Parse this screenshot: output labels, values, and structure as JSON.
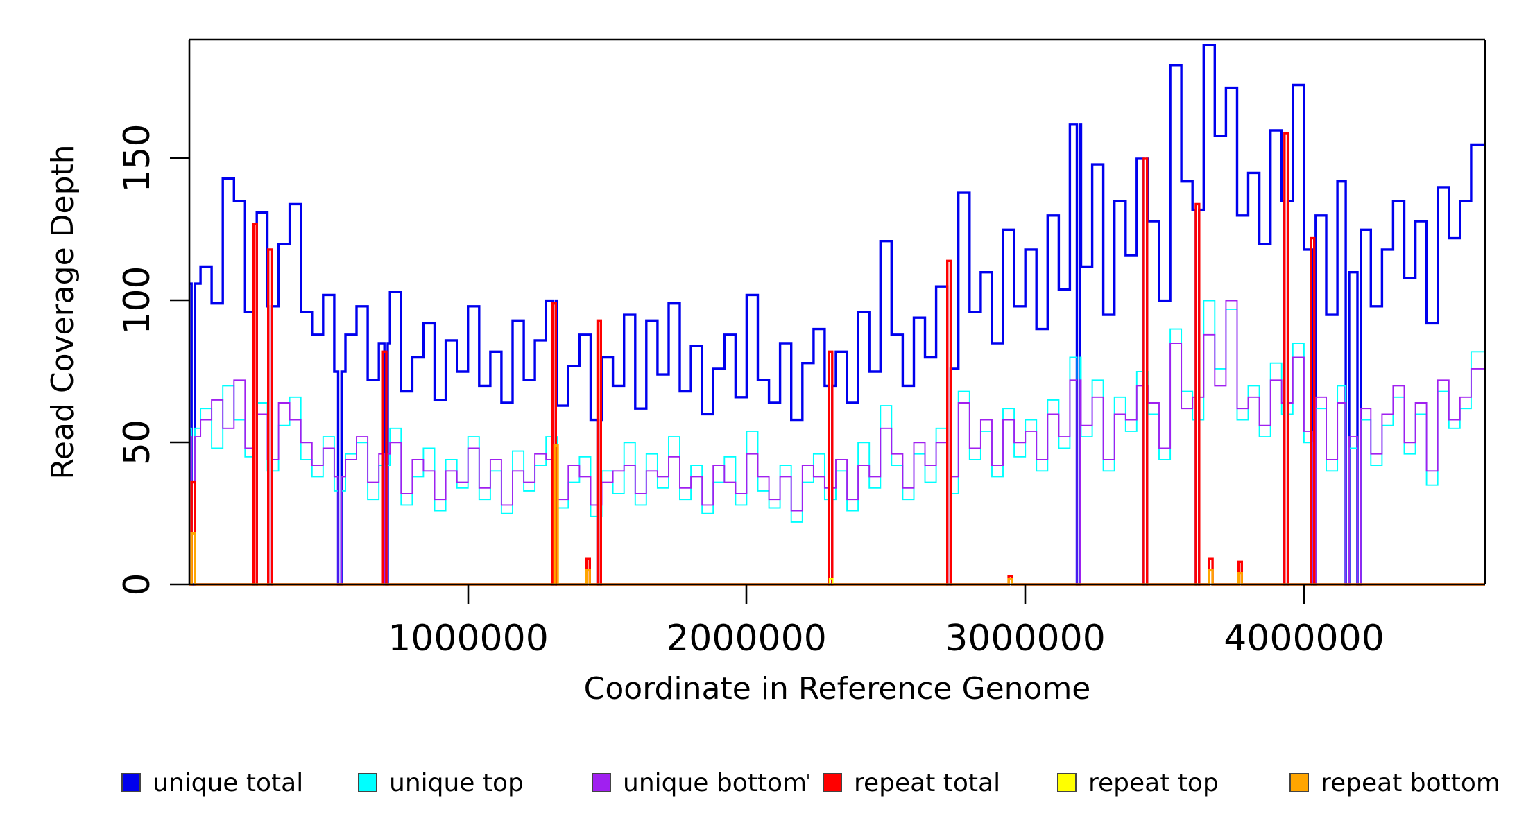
{
  "chart_data": {
    "type": "line",
    "subtype": "step-coverage",
    "title": "",
    "xlabel": "Coordinate in Reference Genome",
    "ylabel": "Read Coverage Depth",
    "xlim": [
      0,
      4650000
    ],
    "ylim": [
      0,
      192
    ],
    "xticks": [
      1000000,
      2000000,
      3000000,
      4000000
    ],
    "xtick_labels": [
      "1000000",
      "2000000",
      "3000000",
      "4000000"
    ],
    "yticks": [
      0,
      50,
      100,
      150
    ],
    "ytick_labels": [
      "0",
      "50",
      "100",
      "150"
    ],
    "grid": false,
    "legend_position": "bottom",
    "bin_size": 40000,
    "notch_width": 12000,
    "zero_dip_positions": [
      8000,
      230000,
      283000,
      534000,
      700000,
      1303000,
      1465000,
      2295000,
      2720000,
      3185000,
      3425000,
      3612000,
      3930000,
      4030000,
      4150000,
      4192000
    ],
    "series": [
      {
        "name": "unique total",
        "color": "#0000ee",
        "width": 3.4,
        "kind": "binned",
        "values": [
          106,
          112,
          99,
          143,
          135,
          96,
          131,
          98,
          120,
          134,
          96,
          88,
          102,
          75,
          88,
          98,
          72,
          85,
          103,
          68,
          80,
          92,
          65,
          86,
          75,
          98,
          70,
          82,
          64,
          93,
          72,
          86,
          100,
          63,
          77,
          88,
          58,
          80,
          70,
          95,
          62,
          93,
          74,
          99,
          68,
          84,
          60,
          76,
          88,
          66,
          102,
          72,
          64,
          85,
          58,
          78,
          90,
          70,
          82,
          64,
          96,
          75,
          121,
          88,
          70,
          94,
          80,
          105,
          76,
          138,
          96,
          110,
          85,
          125,
          98,
          118,
          90,
          130,
          104,
          162,
          112,
          148,
          95,
          135,
          116,
          150,
          128,
          100,
          183,
          142,
          132,
          190,
          158,
          175,
          130,
          145,
          120,
          160,
          135,
          176,
          118,
          130,
          95,
          142,
          110,
          125,
          98,
          118,
          135,
          108,
          128,
          92,
          140,
          122,
          135,
          155
        ]
      },
      {
        "name": "unique top",
        "color": "#00ffff",
        "width": 1.9,
        "kind": "binned",
        "values": [
          55,
          62,
          48,
          70,
          58,
          45,
          64,
          40,
          56,
          66,
          44,
          38,
          52,
          33,
          46,
          50,
          30,
          42,
          55,
          28,
          38,
          48,
          26,
          44,
          34,
          52,
          30,
          40,
          25,
          47,
          33,
          42,
          52,
          27,
          36,
          45,
          24,
          40,
          32,
          50,
          28,
          46,
          34,
          52,
          30,
          42,
          25,
          36,
          45,
          28,
          54,
          33,
          27,
          42,
          22,
          36,
          46,
          30,
          40,
          26,
          50,
          34,
          63,
          42,
          30,
          46,
          36,
          55,
          32,
          68,
          44,
          54,
          38,
          62,
          45,
          58,
          40,
          65,
          48,
          80,
          52,
          72,
          40,
          66,
          54,
          75,
          60,
          44,
          90,
          68,
          58,
          100,
          76,
          97,
          58,
          70,
          52,
          78,
          60,
          85,
          50,
          62,
          40,
          70,
          48,
          58,
          42,
          56,
          66,
          46,
          60,
          35,
          68,
          55,
          62,
          82
        ]
      },
      {
        "name": "unique bottom",
        "color": "#a020f0",
        "width": 1.9,
        "kind": "binned",
        "values": [
          52,
          58,
          65,
          55,
          72,
          48,
          60,
          44,
          64,
          58,
          50,
          42,
          48,
          38,
          44,
          52,
          36,
          46,
          50,
          32,
          44,
          40,
          30,
          40,
          36,
          48,
          34,
          44,
          28,
          40,
          36,
          46,
          44,
          30,
          42,
          38,
          28,
          36,
          40,
          42,
          32,
          40,
          38,
          45,
          34,
          38,
          28,
          42,
          36,
          32,
          46,
          38,
          30,
          38,
          26,
          42,
          38,
          34,
          44,
          30,
          42,
          38,
          55,
          46,
          34,
          50,
          42,
          50,
          38,
          64,
          48,
          58,
          42,
          58,
          50,
          54,
          44,
          60,
          52,
          72,
          56,
          66,
          44,
          60,
          58,
          70,
          64,
          48,
          85,
          62,
          66,
          88,
          70,
          100,
          62,
          66,
          56,
          72,
          64,
          80,
          54,
          66,
          44,
          64,
          52,
          62,
          46,
          60,
          70,
          50,
          64,
          40,
          72,
          58,
          66,
          76
        ]
      },
      {
        "name": "repeat total",
        "color": "#ff0000",
        "width": 3.4,
        "kind": "spikes",
        "spikes": [
          [
            8000,
            36
          ],
          [
            230000,
            127
          ],
          [
            283000,
            118
          ],
          [
            695000,
            82
          ],
          [
            1303000,
            99
          ],
          [
            1425000,
            9
          ],
          [
            1465000,
            93
          ],
          [
            2295000,
            82
          ],
          [
            2720000,
            114
          ],
          [
            2940000,
            3
          ],
          [
            3425000,
            150
          ],
          [
            3612000,
            134
          ],
          [
            3660000,
            9
          ],
          [
            3765000,
            8
          ],
          [
            3930000,
            159
          ],
          [
            4025000,
            122
          ]
        ]
      },
      {
        "name": "repeat top",
        "color": "#ffff00",
        "width": 1.9,
        "kind": "spikes",
        "spikes": [
          [
            2297000,
            2
          ]
        ]
      },
      {
        "name": "repeat bottom",
        "color": "#ffa500",
        "width": 3.2,
        "kind": "spikes",
        "spikes": [
          [
            8000,
            18
          ],
          [
            1310000,
            49
          ],
          [
            1425000,
            5
          ],
          [
            2940000,
            2
          ],
          [
            3660000,
            5
          ],
          [
            3765000,
            4
          ]
        ]
      }
    ]
  },
  "legend": {
    "items": [
      "unique total",
      "unique top",
      "unique bottom",
      "repeat total",
      "repeat top",
      "repeat bottom"
    ]
  }
}
